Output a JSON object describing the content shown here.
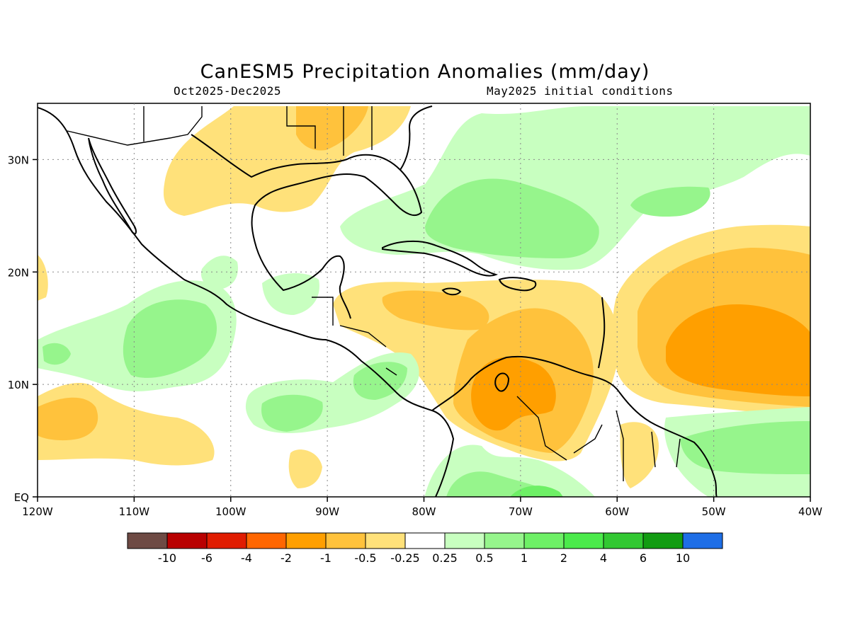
{
  "title": "CanESM5 Precipitation Anomalies (mm/day)",
  "subtitle_left": "Oct2025-Dec2025",
  "subtitle_right": "May2025 initial conditions",
  "axes": {
    "x_ticks": [
      "120W",
      "110W",
      "100W",
      "90W",
      "80W",
      "70W",
      "60W",
      "50W",
      "40W"
    ],
    "y_ticks": [
      "EQ",
      "10N",
      "20N",
      "30N"
    ],
    "lon_range": [
      -120,
      -40
    ],
    "lat_range": [
      0,
      35
    ],
    "grid": true
  },
  "colorbar": {
    "labels": [
      "-10",
      "-6",
      "-4",
      "-2",
      "-1",
      "-0.5",
      "-0.25",
      "0.25",
      "0.5",
      "1",
      "2",
      "4",
      "6",
      "10"
    ],
    "colors": [
      "#6e4a44",
      "#b90000",
      "#e01c00",
      "#ff6600",
      "#ff9f00",
      "#ffc23c",
      "#ffe17a",
      "#ffffff",
      "#c8ffc0",
      "#96f58c",
      "#6ef066",
      "#4bea4b",
      "#32c832",
      "#129c12",
      "#1e6ee6"
    ]
  },
  "map_data": {
    "type": "contour-filled",
    "variable": "precipitation anomaly",
    "units": "mm/day",
    "features": [
      {
        "region": "Gulf coast / Texas",
        "level": "-0.5 to -0.25"
      },
      {
        "region": "Bahamas / Atlantic",
        "level": "0.25 to 1"
      },
      {
        "region": "Caribbean Sea",
        "level": "-1 to -0.25"
      },
      {
        "region": "Venezuela / Colombia",
        "level": "-2 to -0.5"
      },
      {
        "region": "Central Atlantic",
        "level": "-2 to -0.5"
      },
      {
        "region": "Eastern Pacific",
        "level": "0.25 to 1"
      },
      {
        "region": "Northern Brazil",
        "level": "0.25 to 2"
      }
    ]
  }
}
